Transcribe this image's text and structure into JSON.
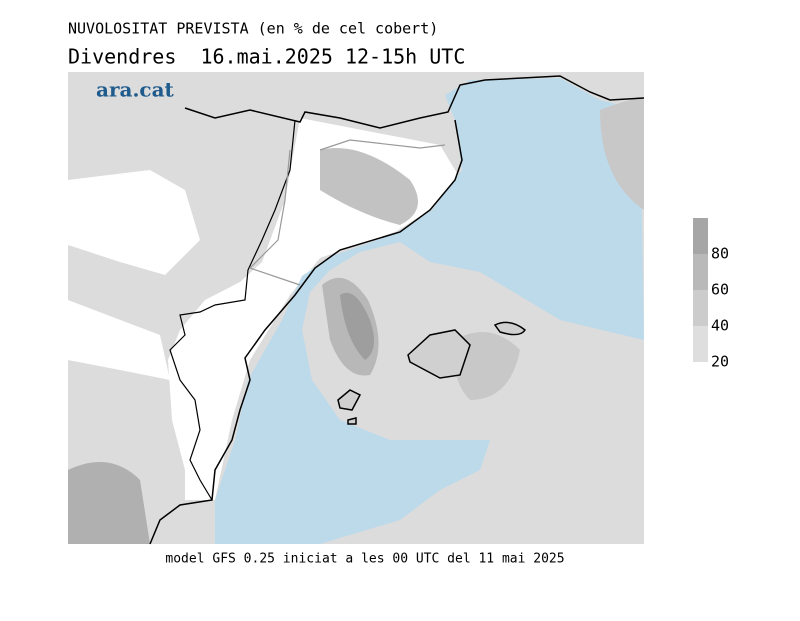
{
  "header": {
    "title": "NUVOLOSITAT PREVISTA (en % de cel cobert)",
    "subtitle": "Divendres  16.mai.2025 12-15h UTC"
  },
  "logo": "ara.cat",
  "legend": {
    "ticks": [
      80,
      60,
      40,
      20
    ],
    "colors": [
      "#a6a6a6",
      "#b9b9b9",
      "#cccccc",
      "#dedede"
    ]
  },
  "footer": "model GFS 0.25 iniciat a les 00 UTC del 11 mai 2025"
}
